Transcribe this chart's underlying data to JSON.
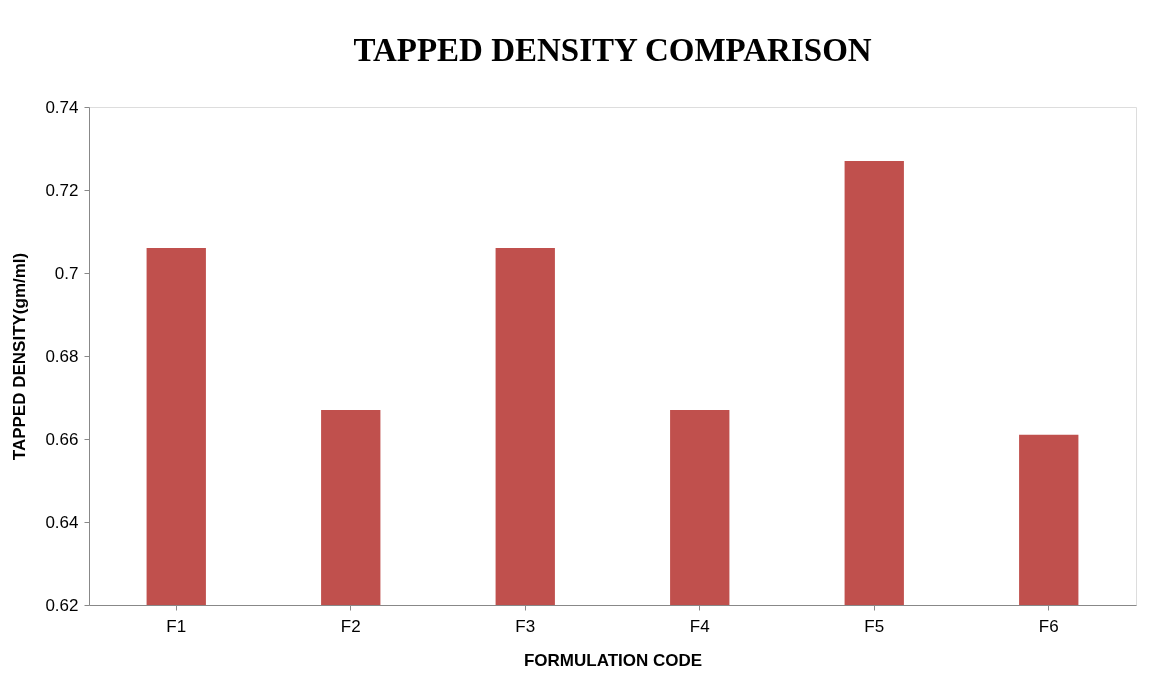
{
  "chart_data": {
    "type": "bar",
    "title": "TAPPED DENSITY COMPARISON",
    "xlabel": "FORMULATION CODE",
    "ylabel": "TAPPED DENSITY(gm/ml)",
    "categories": [
      "F1",
      "F2",
      "F3",
      "F4",
      "F5",
      "F6"
    ],
    "values": [
      0.706,
      0.667,
      0.706,
      0.667,
      0.727,
      0.661
    ],
    "color": "#c0504d",
    "ylim": [
      0.62,
      0.74
    ],
    "yticks": [
      0.62,
      0.64,
      0.66,
      0.68,
      0.7,
      0.72,
      0.74
    ],
    "grid": false
  }
}
